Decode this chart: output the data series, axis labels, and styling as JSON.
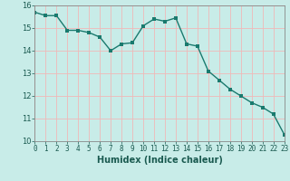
{
  "x": [
    0,
    1,
    2,
    3,
    4,
    5,
    6,
    7,
    8,
    9,
    10,
    11,
    12,
    13,
    14,
    15,
    16,
    17,
    18,
    19,
    20,
    21,
    22,
    23
  ],
  "y": [
    15.7,
    15.55,
    15.55,
    14.9,
    14.9,
    14.8,
    14.6,
    14.0,
    14.3,
    14.35,
    15.1,
    15.4,
    15.3,
    15.45,
    14.3,
    14.2,
    13.1,
    12.7,
    12.3,
    12.0,
    11.7,
    11.5,
    11.2,
    10.3
  ],
  "xlabel": "Humidex (Indice chaleur)",
  "line_color": "#1a7a6e",
  "bg_color": "#c8ece8",
  "grid_color": "#f0b8b8",
  "xlim": [
    0,
    23
  ],
  "ylim": [
    10,
    16
  ],
  "yticks": [
    10,
    11,
    12,
    13,
    14,
    15,
    16
  ],
  "xticks": [
    0,
    1,
    2,
    3,
    4,
    5,
    6,
    7,
    8,
    9,
    10,
    11,
    12,
    13,
    14,
    15,
    16,
    17,
    18,
    19,
    20,
    21,
    22,
    23
  ],
  "tick_fontsize": 5.5,
  "xlabel_fontsize": 7,
  "marker_size": 2.2,
  "linewidth": 1.0
}
